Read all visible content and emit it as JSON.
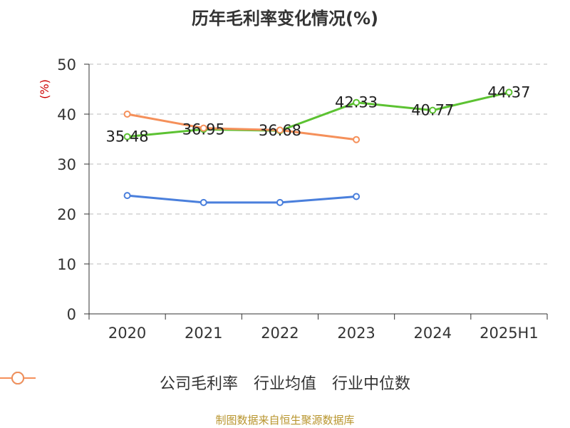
{
  "title": "历年毛利率变化情况(%)",
  "source": "制图数据来自恒生聚源数据库",
  "colors": {
    "grid": "#bbbbbb",
    "axis": "#333333",
    "unit": "#cc0000"
  },
  "chart_data": {
    "type": "line",
    "ylabel": "(%)",
    "ylim": [
      0,
      50
    ],
    "yticks": [
      0,
      10,
      20,
      30,
      40,
      50
    ],
    "categories": [
      "2020",
      "2021",
      "2022",
      "2023",
      "2024",
      "2025H1"
    ],
    "grid": "horizontal-dashed",
    "legend": "bottom",
    "series": [
      {
        "name": "公司毛利率",
        "color": "#5cc232",
        "values": [
          35.48,
          36.95,
          36.68,
          42.33,
          40.77,
          44.37
        ],
        "labels": [
          "35.48",
          "36.95",
          "36.68",
          "42.33",
          "40.77",
          "44.37"
        ]
      },
      {
        "name": "行业均值",
        "color": "#4a7fdc",
        "values": [
          23.7,
          22.3,
          22.3,
          23.5,
          null,
          null
        ],
        "labels": null
      },
      {
        "name": "行业中位数",
        "color": "#f5905a",
        "values": [
          40.0,
          37.2,
          36.8,
          34.9,
          null,
          null
        ],
        "labels": null
      }
    ]
  }
}
